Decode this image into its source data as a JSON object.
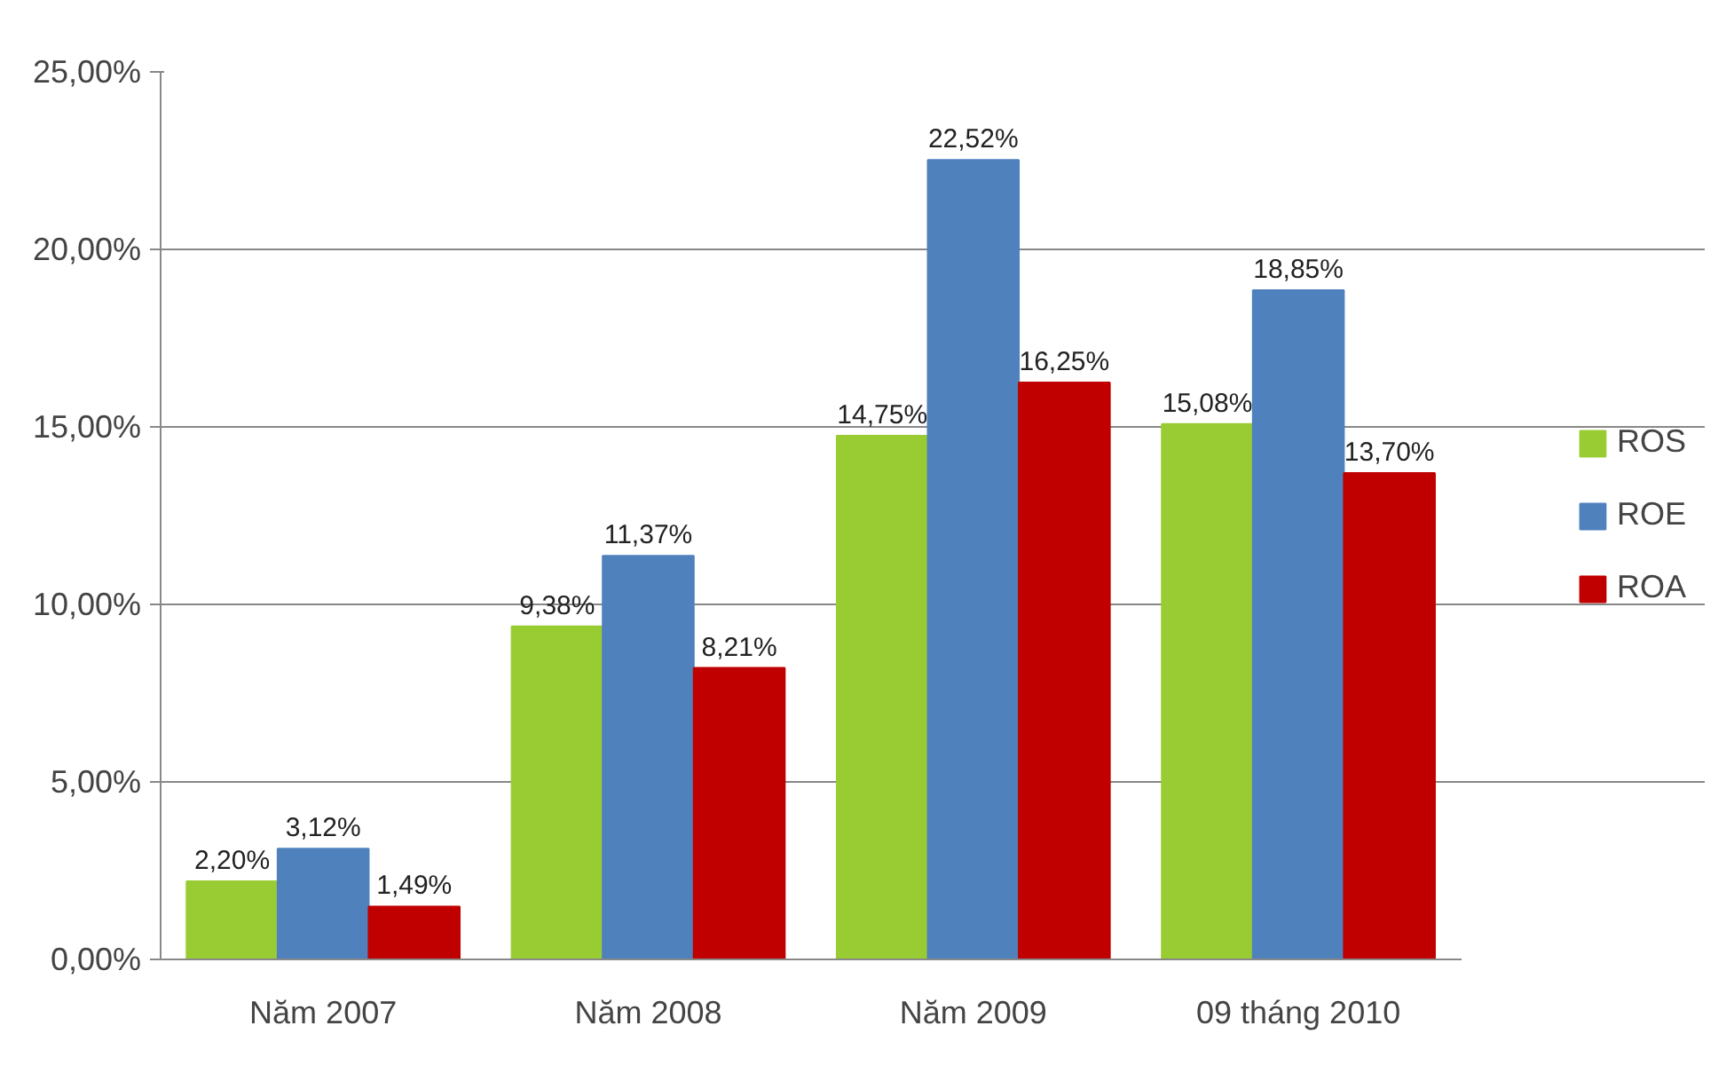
{
  "chart_data": {
    "type": "bar",
    "categories": [
      "Năm 2007",
      "Năm 2008",
      "Năm 2009",
      "09 tháng 2010"
    ],
    "series": [
      {
        "name": "ROS",
        "color": "#99cc33",
        "values": [
          2.2,
          9.38,
          14.75,
          15.08
        ],
        "value_labels": [
          "2,20%",
          "9,38%",
          "14,75%",
          "15,08%"
        ]
      },
      {
        "name": "ROE",
        "color": "#4f81bd",
        "values": [
          3.12,
          11.37,
          22.52,
          18.85
        ],
        "value_labels": [
          "3,12%",
          "11,37%",
          "22,52%",
          "18,85%"
        ]
      },
      {
        "name": "ROA",
        "color": "#c00000",
        "values": [
          1.49,
          8.21,
          16.25,
          13.7
        ],
        "value_labels": [
          "1,49%",
          "8,21%",
          "16,25%",
          "13,70%"
        ]
      }
    ],
    "ylim": [
      0,
      25
    ],
    "yticks": [
      {
        "value": 0,
        "label": "0,00%"
      },
      {
        "value": 5,
        "label": "5,00%"
      },
      {
        "value": 10,
        "label": "10,00%"
      },
      {
        "value": 15,
        "label": "15,00%"
      },
      {
        "value": 20,
        "label": "20,00%"
      },
      {
        "value": 25,
        "label": "25,00%"
      }
    ],
    "grid": "y",
    "legend": "right"
  }
}
